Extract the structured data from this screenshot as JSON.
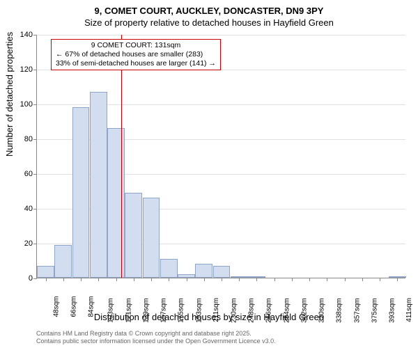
{
  "title": "9, COMET COURT, AUCKLEY, DONCASTER, DN9 3PY",
  "subtitle": "Size of property relative to detached houses in Hayfield Green",
  "y_axis": {
    "label": "Number of detached properties",
    "ticks": [
      0,
      20,
      40,
      60,
      80,
      100,
      120,
      140
    ],
    "max": 140
  },
  "x_axis": {
    "label": "Distribution of detached houses by size in Hayfield Green",
    "labels": [
      "48sqm",
      "66sqm",
      "84sqm",
      "103sqm",
      "121sqm",
      "139sqm",
      "157sqm",
      "175sqm",
      "193sqm",
      "211sqm",
      "230sqm",
      "248sqm",
      "266sqm",
      "284sqm",
      "302sqm",
      "320sqm",
      "338sqm",
      "357sqm",
      "375sqm",
      "393sqm",
      "411sqm"
    ]
  },
  "bars": {
    "values": [
      7,
      19,
      98,
      107,
      86,
      49,
      46,
      11,
      2,
      8,
      7,
      0.5,
      1,
      0,
      0,
      0,
      0,
      0,
      0,
      0,
      0.5
    ],
    "fill_color": "#d2ddef",
    "border_color": "#8ea4c8",
    "width_ratio": 0.98
  },
  "reference": {
    "position_index": 4.3,
    "color": "#cc0000",
    "annotation": {
      "line1": "9 COMET COURT: 131sqm",
      "line2": "← 67% of detached houses are smaller (283)",
      "line3": "33% of semi-detached houses are larger (141) →"
    }
  },
  "footer": {
    "line1": "Contains HM Land Registry data © Crown copyright and database right 2025.",
    "line2": "Contains public sector information licensed under the Open Government Licence v3.0."
  },
  "style": {
    "background": "#ffffff",
    "axis_color": "#888888",
    "grid_opacity": 0.25,
    "title_fontsize": 13,
    "axis_label_fontsize": 13,
    "tick_fontsize": 11
  }
}
